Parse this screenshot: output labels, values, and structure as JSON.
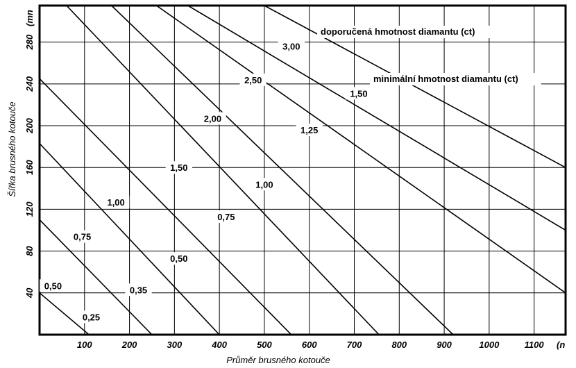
{
  "chart_data": {
    "type": "line",
    "xlabel": "Průměr brusného kotouče",
    "ylabel": "Šířka brusného kotouče",
    "x_ticks": [
      "100",
      "200",
      "300",
      "400",
      "500",
      "600",
      "700",
      "800",
      "900",
      "1000",
      "1100"
    ],
    "x_tick_unit_fragment": "(n",
    "y_ticks": [
      "40",
      "80",
      "120",
      "160",
      "200",
      "240",
      "280"
    ],
    "y_tick_unit_fragment": "(mn",
    "xlim": [
      0,
      1170
    ],
    "ylim": [
      0,
      315
    ],
    "grid": true,
    "legend": [
      "doporučená hmotnost diamantu (ct)",
      "minimální hmotnost diamantu (ct)"
    ],
    "series": [
      {
        "values": [
          [
            0,
            40
          ],
          [
            110,
            0
          ]
        ]
      },
      {
        "values": [
          [
            0,
            110
          ],
          [
            250,
            0
          ]
        ]
      },
      {
        "values": [
          [
            0,
            183
          ],
          [
            400,
            0
          ]
        ]
      },
      {
        "values": [
          [
            0,
            245
          ],
          [
            560,
            0
          ]
        ]
      },
      {
        "values": [
          [
            60,
            315
          ],
          [
            755,
            0
          ]
        ]
      },
      {
        "values": [
          [
            160,
            315
          ],
          [
            920,
            0
          ]
        ]
      },
      {
        "values": [
          [
            260,
            315
          ],
          [
            1170,
            40
          ]
        ]
      },
      {
        "values": [
          [
            330,
            315
          ],
          [
            1170,
            100
          ]
        ]
      },
      {
        "values": [
          [
            500,
            315
          ],
          [
            1170,
            160
          ]
        ]
      }
    ],
    "annotations": [
      {
        "text": "0,50",
        "x": 30,
        "y": 47
      },
      {
        "text": "0,25",
        "x": 115,
        "y": 17
      },
      {
        "text": "0,75",
        "x": 95,
        "y": 94
      },
      {
        "text": "0,35",
        "x": 220,
        "y": 43
      },
      {
        "text": "1,00",
        "x": 170,
        "y": 127
      },
      {
        "text": "0,50",
        "x": 310,
        "y": 73
      },
      {
        "text": "1,50",
        "x": 310,
        "y": 160
      },
      {
        "text": "0,75",
        "x": 415,
        "y": 113
      },
      {
        "text": "2,00",
        "x": 385,
        "y": 207
      },
      {
        "text": "1,00",
        "x": 500,
        "y": 144
      },
      {
        "text": "2,50",
        "x": 475,
        "y": 244
      },
      {
        "text": "1,25",
        "x": 600,
        "y": 196
      },
      {
        "text": "3,00",
        "x": 560,
        "y": 276
      },
      {
        "text": "1,50",
        "x": 710,
        "y": 231
      }
    ]
  }
}
